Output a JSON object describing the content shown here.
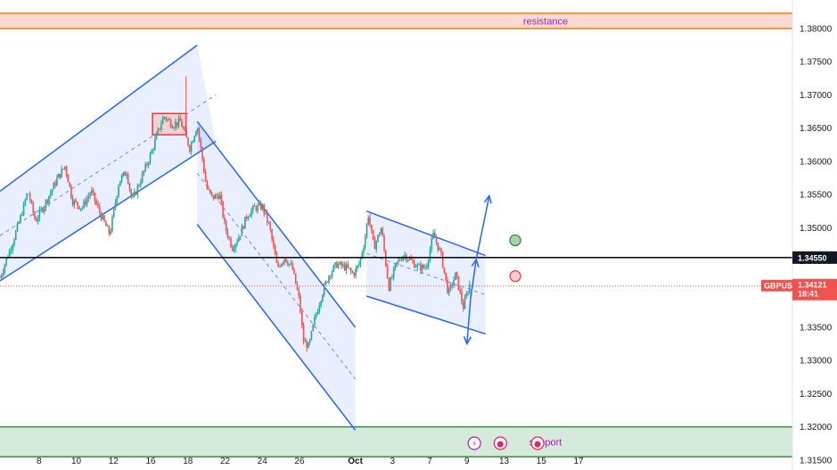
{
  "chart_data": {
    "type": "candlestick",
    "symbol": "GBPUSD",
    "last_price": "1.34121",
    "countdown": "18:41",
    "level_label": "1.34550",
    "level_value": 1.3455,
    "last_value": 1.34121,
    "ylim": [
      1.3135,
      1.3843
    ],
    "xlim": [
      5.9,
      48.5
    ],
    "y_ticks": [
      "1.38000",
      "1.37500",
      "1.37000",
      "1.36500",
      "1.36000",
      "1.35500",
      "1.35000",
      "1.34500",
      "1.34000",
      "1.33500",
      "1.33000",
      "1.32500",
      "1.32000",
      "1.31500"
    ],
    "x_ticks": [
      {
        "label": "8",
        "x": 8
      },
      {
        "label": "10",
        "x": 10
      },
      {
        "label": "12",
        "x": 12
      },
      {
        "label": "16",
        "x": 14
      },
      {
        "label": "18",
        "x": 16
      },
      {
        "label": "22",
        "x": 18
      },
      {
        "label": "24",
        "x": 20
      },
      {
        "label": "26",
        "x": 22
      },
      {
        "label": "Oct",
        "x": 25
      },
      {
        "label": "3",
        "x": 27
      },
      {
        "label": "7",
        "x": 29
      },
      {
        "label": "9",
        "x": 31
      },
      {
        "label": "13",
        "x": 33
      },
      {
        "label": "15",
        "x": 35
      },
      {
        "label": "17",
        "x": 37
      }
    ],
    "zones": [
      {
        "name": "resistance",
        "from": 1.38,
        "to": 1.3823,
        "fill": "#fdd9d3",
        "border": "#f57c00",
        "text": "#9c27b0"
      },
      {
        "name": "support",
        "from": 1.3155,
        "to": 1.32,
        "fill": "#d5eadb",
        "border": "#388e3c",
        "text": "#9c27b0"
      }
    ],
    "channels": [
      {
        "kind": "ascending",
        "upper": [
          [
            5.9,
            1.3555
          ],
          [
            16.5,
            1.3775
          ]
        ],
        "lower": [
          [
            5.9,
            1.342
          ],
          [
            17.5,
            1.363
          ]
        ],
        "mid": [
          [
            5.9,
            1.3488
          ],
          [
            17.5,
            1.37
          ]
        ]
      },
      {
        "kind": "descending",
        "upper": [
          [
            16.5,
            1.366
          ],
          [
            25,
            1.335
          ]
        ],
        "lower": [
          [
            16.5,
            1.3505
          ],
          [
            25,
            1.3195
          ]
        ],
        "mid": [
          [
            16.5,
            1.3582
          ],
          [
            25,
            1.3272
          ]
        ]
      },
      {
        "kind": "descending",
        "upper": [
          [
            25.6,
            1.3525
          ],
          [
            32,
            1.3458
          ]
        ],
        "lower": [
          [
            25.6,
            1.3397
          ],
          [
            32,
            1.334
          ]
        ],
        "mid": [
          [
            25.6,
            1.3461
          ],
          [
            32,
            1.3399
          ]
        ]
      }
    ],
    "consolidation_box": {
      "x0": 14.1,
      "x1": 15.9,
      "y0": 1.364,
      "y1": 1.3672,
      "stroke": "#e53935",
      "fill": "#f8c9cb"
    },
    "spike": {
      "x": 15.9,
      "high": 1.3728
    },
    "arrows": [
      {
        "from": [
          31.2,
          1.3394
        ],
        "to": [
          31.5,
          1.3452
        ]
      },
      {
        "from": [
          31.5,
          1.3452
        ],
        "to": [
          32.2,
          1.3548
        ]
      },
      {
        "from": [
          31.2,
          1.3394
        ],
        "to": [
          31.0,
          1.3325
        ]
      }
    ],
    "markers": [
      {
        "x": 33.6,
        "y": 1.3481,
        "fill": "#a5d6a7",
        "stroke": "#2e7d32"
      },
      {
        "x": 33.6,
        "y": 1.3427,
        "fill": "#ffcdd2",
        "stroke": "#e53935"
      }
    ],
    "event_icons": [
      {
        "x": 31.4,
        "fill": "#9c27b0",
        "glyph": "⚡"
      },
      {
        "x": 32.8,
        "fill": "#e91e63",
        "glyph": "●"
      },
      {
        "x": 34.8,
        "fill": "#e91e63",
        "glyph": "●"
      }
    ],
    "colors": {
      "up": "#26a69a",
      "down": "#ef5350",
      "channel": "#2962ff",
      "level": "#000000",
      "last": "#ef5350"
    },
    "path": [
      [
        5.9,
        1.3425
      ],
      [
        6.6,
        1.348
      ],
      [
        7.0,
        1.3515
      ],
      [
        7.4,
        1.3555
      ],
      [
        7.8,
        1.351
      ],
      [
        8.3,
        1.3535
      ],
      [
        9.0,
        1.3575
      ],
      [
        9.4,
        1.3593
      ],
      [
        9.8,
        1.354
      ],
      [
        10.3,
        1.353
      ],
      [
        10.8,
        1.3555
      ],
      [
        11.3,
        1.352
      ],
      [
        11.8,
        1.349
      ],
      [
        12.3,
        1.357
      ],
      [
        12.7,
        1.3585
      ],
      [
        13.0,
        1.354
      ],
      [
        13.5,
        1.3575
      ],
      [
        14.0,
        1.361
      ],
      [
        14.4,
        1.3645
      ],
      [
        14.7,
        1.3668
      ],
      [
        15.2,
        1.3655
      ],
      [
        15.6,
        1.366
      ],
      [
        16.1,
        1.362
      ],
      [
        16.5,
        1.3655
      ],
      [
        16.8,
        1.36
      ],
      [
        17.0,
        1.356
      ],
      [
        17.3,
        1.3545
      ],
      [
        17.7,
        1.355
      ],
      [
        18.0,
        1.35
      ],
      [
        18.4,
        1.347
      ],
      [
        18.8,
        1.349
      ],
      [
        19.2,
        1.352
      ],
      [
        19.6,
        1.353
      ],
      [
        20.0,
        1.3532
      ],
      [
        20.4,
        1.35
      ],
      [
        20.8,
        1.344
      ],
      [
        21.2,
        1.3455
      ],
      [
        21.6,
        1.344
      ],
      [
        22.0,
        1.339
      ],
      [
        22.2,
        1.333
      ],
      [
        22.5,
        1.332
      ],
      [
        22.8,
        1.336
      ],
      [
        23.2,
        1.34
      ],
      [
        23.6,
        1.343
      ],
      [
        24.0,
        1.3445
      ],
      [
        24.5,
        1.344
      ],
      [
        24.9,
        1.343
      ],
      [
        25.2,
        1.3445
      ],
      [
        25.5,
        1.348
      ],
      [
        25.7,
        1.352
      ],
      [
        26.0,
        1.347
      ],
      [
        26.4,
        1.35
      ],
      [
        26.8,
        1.341
      ],
      [
        27.2,
        1.3445
      ],
      [
        27.6,
        1.346
      ],
      [
        28.0,
        1.345
      ],
      [
        28.4,
        1.344
      ],
      [
        28.8,
        1.344
      ],
      [
        29.2,
        1.349
      ],
      [
        29.6,
        1.346
      ],
      [
        30.0,
        1.34
      ],
      [
        30.4,
        1.343
      ],
      [
        30.8,
        1.338
      ],
      [
        31.2,
        1.342
      ]
    ]
  }
}
